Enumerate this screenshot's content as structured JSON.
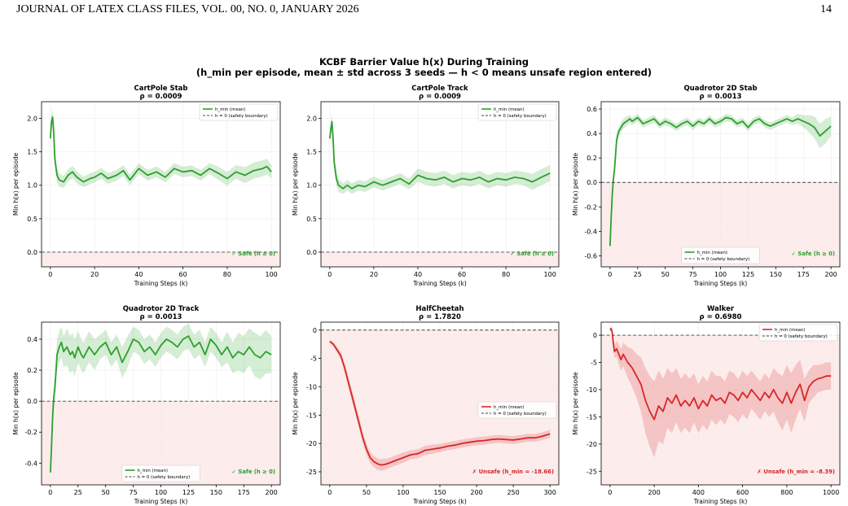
{
  "page_header": {
    "left": "JOURNAL OF LATEX CLASS FILES, VOL. 00, NO. 0, JANUARY 2026",
    "right": "14"
  },
  "figure": {
    "title_line1": "KCBF Barrier Value h(x) During Training",
    "title_line2": "(h_min per episode, mean ± std across 3 seeds — h < 0 means unsafe region entered)"
  },
  "colors": {
    "safe": "#2ca02c",
    "unsafe": "#d62728",
    "unsafe_region": "#fdecec"
  },
  "chart_data": [
    {
      "type": "line",
      "title": "CartPole Stab",
      "subtitle": "ρ = 0.0009",
      "xlabel": "Training Steps (k)",
      "ylabel": "Min h(x) per episode",
      "xlim": [
        -4,
        104
      ],
      "ylim": [
        -0.22,
        2.25
      ],
      "xticks": [
        0,
        20,
        40,
        60,
        80,
        100
      ],
      "yticks": [
        0.0,
        0.5,
        1.0,
        1.5,
        2.0
      ],
      "tick_decimals": 1,
      "status": "safe",
      "status_label": "✓ Safe (h ≥ 0)",
      "legend_position": "top-right",
      "legend": [
        "h_min (mean)",
        "h = 0 (safety boundary)"
      ],
      "series": [
        {
          "name": "h_min (mean)",
          "x": [
            0,
            0.5,
            1,
            1.5,
            2,
            3,
            4,
            6,
            8,
            10,
            12,
            15,
            18,
            20,
            23,
            26,
            30,
            33,
            36,
            40,
            44,
            48,
            52,
            56,
            60,
            64,
            68,
            72,
            76,
            80,
            84,
            88,
            92,
            96,
            98,
            100
          ],
          "y": [
            1.7,
            1.95,
            2.02,
            1.8,
            1.4,
            1.15,
            1.08,
            1.05,
            1.15,
            1.2,
            1.12,
            1.05,
            1.1,
            1.12,
            1.18,
            1.1,
            1.15,
            1.22,
            1.08,
            1.25,
            1.15,
            1.2,
            1.12,
            1.25,
            1.2,
            1.22,
            1.15,
            1.25,
            1.18,
            1.1,
            1.2,
            1.15,
            1.22,
            1.25,
            1.28,
            1.2
          ],
          "std": [
            0.05,
            0.1,
            0.12,
            0.12,
            0.12,
            0.1,
            0.1,
            0.09,
            0.09,
            0.09,
            0.09,
            0.08,
            0.08,
            0.08,
            0.08,
            0.08,
            0.08,
            0.08,
            0.08,
            0.08,
            0.08,
            0.08,
            0.08,
            0.08,
            0.08,
            0.08,
            0.08,
            0.08,
            0.1,
            0.1,
            0.1,
            0.12,
            0.12,
            0.12,
            0.12,
            0.1
          ]
        }
      ]
    },
    {
      "type": "line",
      "title": "CartPole Track",
      "subtitle": "ρ = 0.0009",
      "xlabel": "Training Steps (k)",
      "ylabel": "Min h(x) per episode",
      "xlim": [
        -4,
        104
      ],
      "ylim": [
        -0.22,
        2.25
      ],
      "xticks": [
        0,
        20,
        40,
        60,
        80,
        100
      ],
      "yticks": [
        0.0,
        0.5,
        1.0,
        1.5,
        2.0
      ],
      "tick_decimals": 1,
      "status": "safe",
      "status_label": "✓ Safe (h ≥ 0)",
      "legend_position": "top-right",
      "legend": [
        "h_min (mean)",
        "h = 0 (safety boundary)"
      ],
      "series": [
        {
          "name": "h_min (mean)",
          "x": [
            0,
            0.5,
            1,
            1.5,
            2,
            3,
            4,
            6,
            8,
            10,
            13,
            16,
            20,
            24,
            28,
            32,
            36,
            40,
            44,
            48,
            52,
            56,
            60,
            64,
            68,
            72,
            76,
            80,
            84,
            88,
            92,
            96,
            100
          ],
          "y": [
            1.7,
            1.85,
            1.95,
            1.7,
            1.35,
            1.1,
            1.0,
            0.95,
            1.0,
            0.95,
            1.0,
            0.98,
            1.05,
            1.0,
            1.05,
            1.1,
            1.02,
            1.15,
            1.1,
            1.08,
            1.12,
            1.05,
            1.1,
            1.08,
            1.12,
            1.05,
            1.1,
            1.08,
            1.12,
            1.1,
            1.05,
            1.12,
            1.18
          ],
          "std": [
            0.05,
            0.1,
            0.12,
            0.12,
            0.12,
            0.1,
            0.1,
            0.08,
            0.08,
            0.08,
            0.08,
            0.08,
            0.08,
            0.08,
            0.08,
            0.08,
            0.08,
            0.1,
            0.1,
            0.1,
            0.1,
            0.1,
            0.1,
            0.1,
            0.1,
            0.1,
            0.1,
            0.1,
            0.1,
            0.1,
            0.12,
            0.12,
            0.12
          ]
        }
      ]
    },
    {
      "type": "line",
      "title": "Quadrotor 2D Stab",
      "subtitle": "ρ = 0.0013",
      "xlabel": "Training Steps (k)",
      "ylabel": "Min h(x) per episode",
      "xlim": [
        -8,
        208
      ],
      "ylim": [
        -0.69,
        0.66
      ],
      "xticks": [
        0,
        25,
        50,
        75,
        100,
        125,
        150,
        175,
        200
      ],
      "yticks": [
        -0.6,
        -0.4,
        -0.2,
        0.0,
        0.2,
        0.4,
        0.6
      ],
      "tick_decimals": 1,
      "status": "safe",
      "status_label": "✓ Safe (h ≥ 0)",
      "legend_position": "bottom-center",
      "legend": [
        "h_min (mean)",
        "h = 0 (safety boundary)"
      ],
      "series": [
        {
          "name": "h_min (mean)",
          "x": [
            0,
            1,
            2,
            3,
            4,
            5,
            6,
            8,
            10,
            12,
            15,
            18,
            20,
            25,
            30,
            35,
            40,
            45,
            50,
            55,
            60,
            65,
            70,
            75,
            80,
            85,
            90,
            95,
            100,
            105,
            110,
            115,
            120,
            125,
            130,
            135,
            140,
            145,
            150,
            155,
            160,
            165,
            170,
            175,
            180,
            185,
            190,
            195,
            200
          ],
          "y": [
            -0.52,
            -0.3,
            -0.1,
            0.02,
            0.1,
            0.22,
            0.35,
            0.42,
            0.45,
            0.48,
            0.5,
            0.52,
            0.5,
            0.53,
            0.48,
            0.5,
            0.52,
            0.47,
            0.5,
            0.48,
            0.45,
            0.48,
            0.5,
            0.46,
            0.5,
            0.48,
            0.52,
            0.48,
            0.5,
            0.53,
            0.52,
            0.48,
            0.5,
            0.45,
            0.5,
            0.52,
            0.48,
            0.46,
            0.48,
            0.5,
            0.52,
            0.5,
            0.52,
            0.5,
            0.48,
            0.45,
            0.38,
            0.42,
            0.46
          ],
          "std": [
            0.01,
            0.03,
            0.04,
            0.05,
            0.05,
            0.05,
            0.05,
            0.04,
            0.04,
            0.04,
            0.04,
            0.03,
            0.03,
            0.03,
            0.03,
            0.03,
            0.03,
            0.03,
            0.03,
            0.03,
            0.03,
            0.03,
            0.03,
            0.03,
            0.03,
            0.03,
            0.03,
            0.03,
            0.03,
            0.03,
            0.03,
            0.03,
            0.03,
            0.03,
            0.03,
            0.03,
            0.03,
            0.03,
            0.03,
            0.03,
            0.03,
            0.03,
            0.04,
            0.05,
            0.07,
            0.09,
            0.1,
            0.1,
            0.08
          ]
        }
      ]
    },
    {
      "type": "line",
      "title": "Quadrotor 2D Track",
      "subtitle": "ρ = 0.0013",
      "xlabel": "Training Steps (k)",
      "ylabel": "Min h(x) per episode",
      "xlim": [
        -8,
        208
      ],
      "ylim": [
        -0.54,
        0.51
      ],
      "xticks": [
        0,
        25,
        50,
        75,
        100,
        125,
        150,
        175,
        200
      ],
      "yticks": [
        -0.4,
        -0.2,
        0.0,
        0.2,
        0.4
      ],
      "tick_decimals": 1,
      "status": "safe",
      "status_label": "✓ Safe (h ≥ 0)",
      "legend_position": "bottom-center",
      "legend": [
        "h_min (mean)",
        "h = 0 (safety boundary)"
      ],
      "series": [
        {
          "name": "h_min (mean)",
          "x": [
            0,
            1,
            2,
            3,
            4,
            5,
            6,
            8,
            10,
            12,
            15,
            18,
            20,
            22,
            25,
            28,
            30,
            35,
            40,
            45,
            50,
            55,
            60,
            65,
            70,
            75,
            80,
            85,
            90,
            95,
            100,
            105,
            110,
            115,
            120,
            125,
            130,
            135,
            140,
            145,
            150,
            155,
            160,
            165,
            170,
            175,
            180,
            185,
            190,
            195,
            200
          ],
          "y": [
            -0.46,
            -0.3,
            -0.1,
            0.02,
            0.08,
            0.18,
            0.3,
            0.35,
            0.38,
            0.32,
            0.35,
            0.3,
            0.32,
            0.28,
            0.35,
            0.3,
            0.28,
            0.35,
            0.3,
            0.35,
            0.38,
            0.3,
            0.35,
            0.25,
            0.32,
            0.4,
            0.38,
            0.32,
            0.35,
            0.3,
            0.36,
            0.4,
            0.38,
            0.35,
            0.4,
            0.42,
            0.35,
            0.38,
            0.3,
            0.4,
            0.36,
            0.3,
            0.35,
            0.28,
            0.32,
            0.3,
            0.35,
            0.3,
            0.28,
            0.32,
            0.3
          ],
          "std": [
            0.01,
            0.04,
            0.06,
            0.08,
            0.08,
            0.08,
            0.1,
            0.1,
            0.1,
            0.1,
            0.12,
            0.12,
            0.12,
            0.12,
            0.1,
            0.1,
            0.1,
            0.1,
            0.1,
            0.08,
            0.08,
            0.08,
            0.08,
            0.1,
            0.1,
            0.08,
            0.08,
            0.08,
            0.08,
            0.08,
            0.08,
            0.08,
            0.08,
            0.08,
            0.08,
            0.08,
            0.08,
            0.08,
            0.08,
            0.08,
            0.08,
            0.08,
            0.1,
            0.1,
            0.12,
            0.12,
            0.12,
            0.14,
            0.14,
            0.14,
            0.12
          ]
        }
      ]
    },
    {
      "type": "line",
      "title": "HalfCheetah",
      "subtitle": "ρ = 1.7820",
      "xlabel": "Training Steps (k)",
      "ylabel": "Min h(x) per episode",
      "xlim": [
        -12,
        312
      ],
      "ylim": [
        -27.3,
        1.4
      ],
      "xticks": [
        0,
        50,
        100,
        150,
        200,
        250,
        300
      ],
      "yticks": [
        -25,
        -20,
        -15,
        -10,
        -5,
        0
      ],
      "tick_decimals": 0,
      "status": "unsafe",
      "status_label": "✗ Unsafe (h_min = -18.66)",
      "legend_position": "center-right",
      "legend": [
        "h_min (mean)",
        "h = 0 (safety boundary)"
      ],
      "series": [
        {
          "name": "h_min (mean)",
          "x": [
            0,
            5,
            10,
            15,
            20,
            25,
            30,
            35,
            40,
            45,
            50,
            55,
            60,
            65,
            70,
            75,
            80,
            90,
            100,
            110,
            120,
            130,
            140,
            150,
            160,
            170,
            180,
            190,
            200,
            210,
            220,
            230,
            240,
            250,
            260,
            270,
            280,
            290,
            300
          ],
          "y": [
            -2.0,
            -2.5,
            -3.5,
            -4.5,
            -6.5,
            -9.0,
            -11.5,
            -14.0,
            -16.5,
            -19.0,
            -21.0,
            -22.5,
            -23.2,
            -23.6,
            -23.8,
            -23.7,
            -23.5,
            -23.0,
            -22.5,
            -22.0,
            -21.8,
            -21.2,
            -21.0,
            -20.8,
            -20.5,
            -20.3,
            -20.0,
            -19.8,
            -19.6,
            -19.5,
            -19.3,
            -19.2,
            -19.3,
            -19.4,
            -19.2,
            -19.0,
            -19.0,
            -18.7,
            -18.3
          ],
          "std": [
            0.3,
            0.4,
            0.5,
            0.7,
            0.8,
            1.0,
            1.0,
            1.0,
            1.0,
            1.0,
            1.0,
            1.0,
            1.0,
            1.0,
            1.0,
            1.0,
            0.9,
            0.9,
            0.9,
            0.8,
            0.8,
            0.8,
            0.8,
            0.7,
            0.7,
            0.7,
            0.7,
            0.7,
            0.7,
            0.7,
            0.7,
            0.7,
            0.7,
            0.7,
            0.7,
            0.7,
            0.7,
            0.7,
            0.7
          ]
        }
      ]
    },
    {
      "type": "line",
      "title": "Walker",
      "subtitle": "ρ = 0.6980",
      "xlabel": "Training Steps (k)",
      "ylabel": "Min h(x) per episode",
      "xlim": [
        -40,
        1040
      ],
      "ylim": [
        -27.5,
        2.4
      ],
      "xticks": [
        0,
        200,
        400,
        600,
        800,
        1000
      ],
      "yticks": [
        -25,
        -20,
        -15,
        -10,
        -5,
        0
      ],
      "tick_decimals": 0,
      "status": "unsafe",
      "status_label": "✗ Unsafe (h_min = -8.39)",
      "legend_position": "top-right",
      "legend": [
        "h_min (mean)",
        "h = 0 (safety boundary)"
      ],
      "series": [
        {
          "name": "h_min (mean)",
          "x": [
            0,
            5,
            10,
            15,
            20,
            30,
            40,
            50,
            60,
            80,
            100,
            120,
            140,
            160,
            180,
            200,
            220,
            240,
            260,
            280,
            300,
            320,
            340,
            360,
            380,
            400,
            420,
            440,
            460,
            480,
            500,
            520,
            540,
            560,
            580,
            600,
            620,
            640,
            660,
            680,
            700,
            720,
            740,
            760,
            780,
            800,
            820,
            840,
            860,
            880,
            900,
            920,
            940,
            960,
            980,
            1000
          ],
          "y": [
            1.0,
            1.2,
            0.5,
            -1.5,
            -3.0,
            -2.5,
            -3.5,
            -4.5,
            -3.5,
            -5.0,
            -6.0,
            -7.5,
            -9.0,
            -12.0,
            -14.0,
            -15.5,
            -13.0,
            -14.0,
            -11.5,
            -12.5,
            -11.0,
            -13.0,
            -12.0,
            -13.0,
            -11.5,
            -13.5,
            -12.0,
            -13.0,
            -11.0,
            -12.0,
            -11.5,
            -12.5,
            -10.5,
            -11.0,
            -12.0,
            -10.5,
            -11.5,
            -10.0,
            -11.0,
            -12.0,
            -10.5,
            -11.5,
            -10.0,
            -11.5,
            -12.5,
            -10.5,
            -12.5,
            -10.5,
            -9.0,
            -12.0,
            -9.5,
            -8.5,
            -8.0,
            -7.8,
            -7.5,
            -7.5
          ],
          "std": [
            0.3,
            0.5,
            0.8,
            1.0,
            1.2,
            1.5,
            1.8,
            2.0,
            2.2,
            2.8,
            3.5,
            4.0,
            5.0,
            6.0,
            6.5,
            7.0,
            6.5,
            6.0,
            5.5,
            5.5,
            5.0,
            5.0,
            5.0,
            5.0,
            4.5,
            4.5,
            4.5,
            4.5,
            4.5,
            4.5,
            4.0,
            4.0,
            4.0,
            4.0,
            4.0,
            4.0,
            4.0,
            3.5,
            3.5,
            3.5,
            3.5,
            3.5,
            4.0,
            4.5,
            5.0,
            5.0,
            5.5,
            5.0,
            4.5,
            4.0,
            3.0,
            3.0,
            2.5,
            2.5,
            2.5,
            2.5
          ]
        }
      ]
    }
  ]
}
